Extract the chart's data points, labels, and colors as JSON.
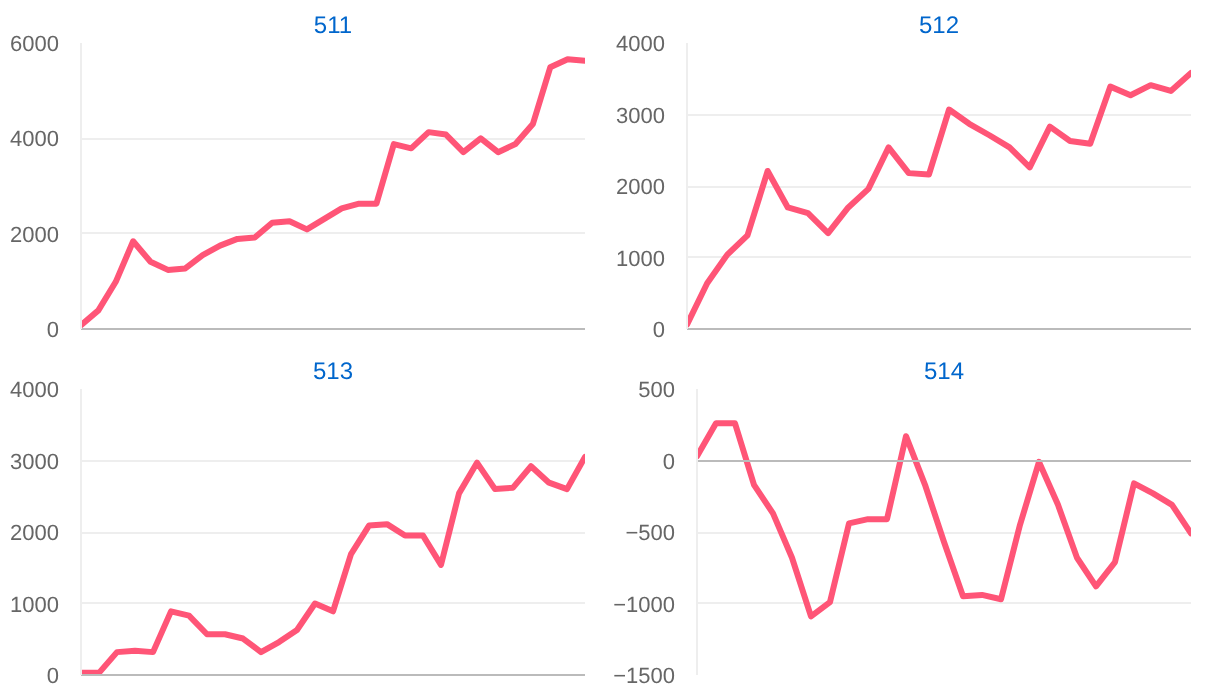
{
  "chart_data": [
    {
      "type": "line",
      "title": "511",
      "categories": [
        null,
        null,
        null,
        null,
        null,
        null,
        null,
        null,
        null,
        null,
        null,
        null,
        null,
        null,
        null,
        null,
        null,
        null,
        null,
        null,
        null,
        null,
        null,
        null,
        null,
        null,
        null,
        null,
        null,
        null
      ],
      "series": [
        {
          "color": "#ff5577",
          "values": [
            80,
            390,
            990,
            1840,
            1410,
            1240,
            1270,
            1550,
            1750,
            1890,
            1920,
            2230,
            2260,
            2090,
            2310,
            2530,
            2630,
            2630,
            3880,
            3790,
            4130,
            4080,
            3710,
            4000,
            3710,
            3880,
            4300,
            5490,
            5660,
            5630
          ]
        }
      ],
      "ylim": [
        0,
        6000
      ],
      "yticks": [
        0,
        2000,
        4000,
        6000
      ],
      "grid": "y",
      "tick_labels": "y",
      "line_style": "solid"
    },
    {
      "type": "line",
      "title": "512",
      "categories": [
        null,
        null,
        null,
        null,
        null,
        null,
        null,
        null,
        null,
        null,
        null,
        null,
        null,
        null,
        null,
        null,
        null,
        null,
        null,
        null,
        null,
        null,
        null,
        null,
        null,
        null
      ],
      "series": [
        {
          "color": "#ff5577",
          "values": [
            60,
            640,
            1040,
            1310,
            2210,
            1700,
            1620,
            1340,
            1700,
            1960,
            2540,
            2180,
            2160,
            3070,
            2870,
            2710,
            2540,
            2260,
            2830,
            2630,
            2590,
            3390,
            3270,
            3410,
            3330,
            3580
          ]
        }
      ],
      "ylim": [
        0,
        4000
      ],
      "yticks": [
        0,
        1000,
        2000,
        3000,
        4000
      ],
      "grid": "y",
      "tick_labels": "y",
      "line_style": "solid"
    },
    {
      "type": "line",
      "title": "513",
      "categories": [
        null,
        null,
        null,
        null,
        null,
        null,
        null,
        null,
        null,
        null,
        null,
        null,
        null,
        null,
        null,
        null,
        null,
        null,
        null,
        null,
        null,
        null,
        null,
        null,
        null,
        null,
        null,
        null,
        null
      ],
      "series": [
        {
          "color": "#ff5577",
          "values": [
            30,
            30,
            320,
            340,
            320,
            890,
            830,
            570,
            570,
            510,
            320,
            460,
            630,
            1000,
            890,
            1690,
            2090,
            2110,
            1950,
            1950,
            1540,
            2540,
            2970,
            2600,
            2620,
            2920,
            2690,
            2600,
            3050
          ]
        }
      ],
      "ylim": [
        0,
        4000
      ],
      "yticks": [
        0,
        1000,
        2000,
        3000,
        4000
      ],
      "grid": "y",
      "tick_labels": "y",
      "line_style": "solid"
    },
    {
      "type": "line",
      "title": "514",
      "categories": [
        null,
        null,
        null,
        null,
        null,
        null,
        null,
        null,
        null,
        null,
        null,
        null,
        null,
        null,
        null,
        null,
        null,
        null,
        null,
        null,
        null,
        null,
        null,
        null,
        null,
        null,
        null
      ],
      "series": [
        {
          "color": "#ff5577",
          "values": [
            30,
            260,
            260,
            -170,
            -370,
            -680,
            -1090,
            -990,
            -440,
            -410,
            -410,
            170,
            -170,
            -570,
            -950,
            -940,
            -970,
            -450,
            -10,
            -310,
            -680,
            -880,
            -710,
            -160,
            -230,
            -310,
            -510
          ]
        }
      ],
      "ylim": [
        -1500,
        500
      ],
      "yticks": [
        -1500,
        -1000,
        -500,
        0,
        500
      ],
      "grid": "y",
      "tick_labels": "y",
      "line_style": "solid"
    }
  ]
}
